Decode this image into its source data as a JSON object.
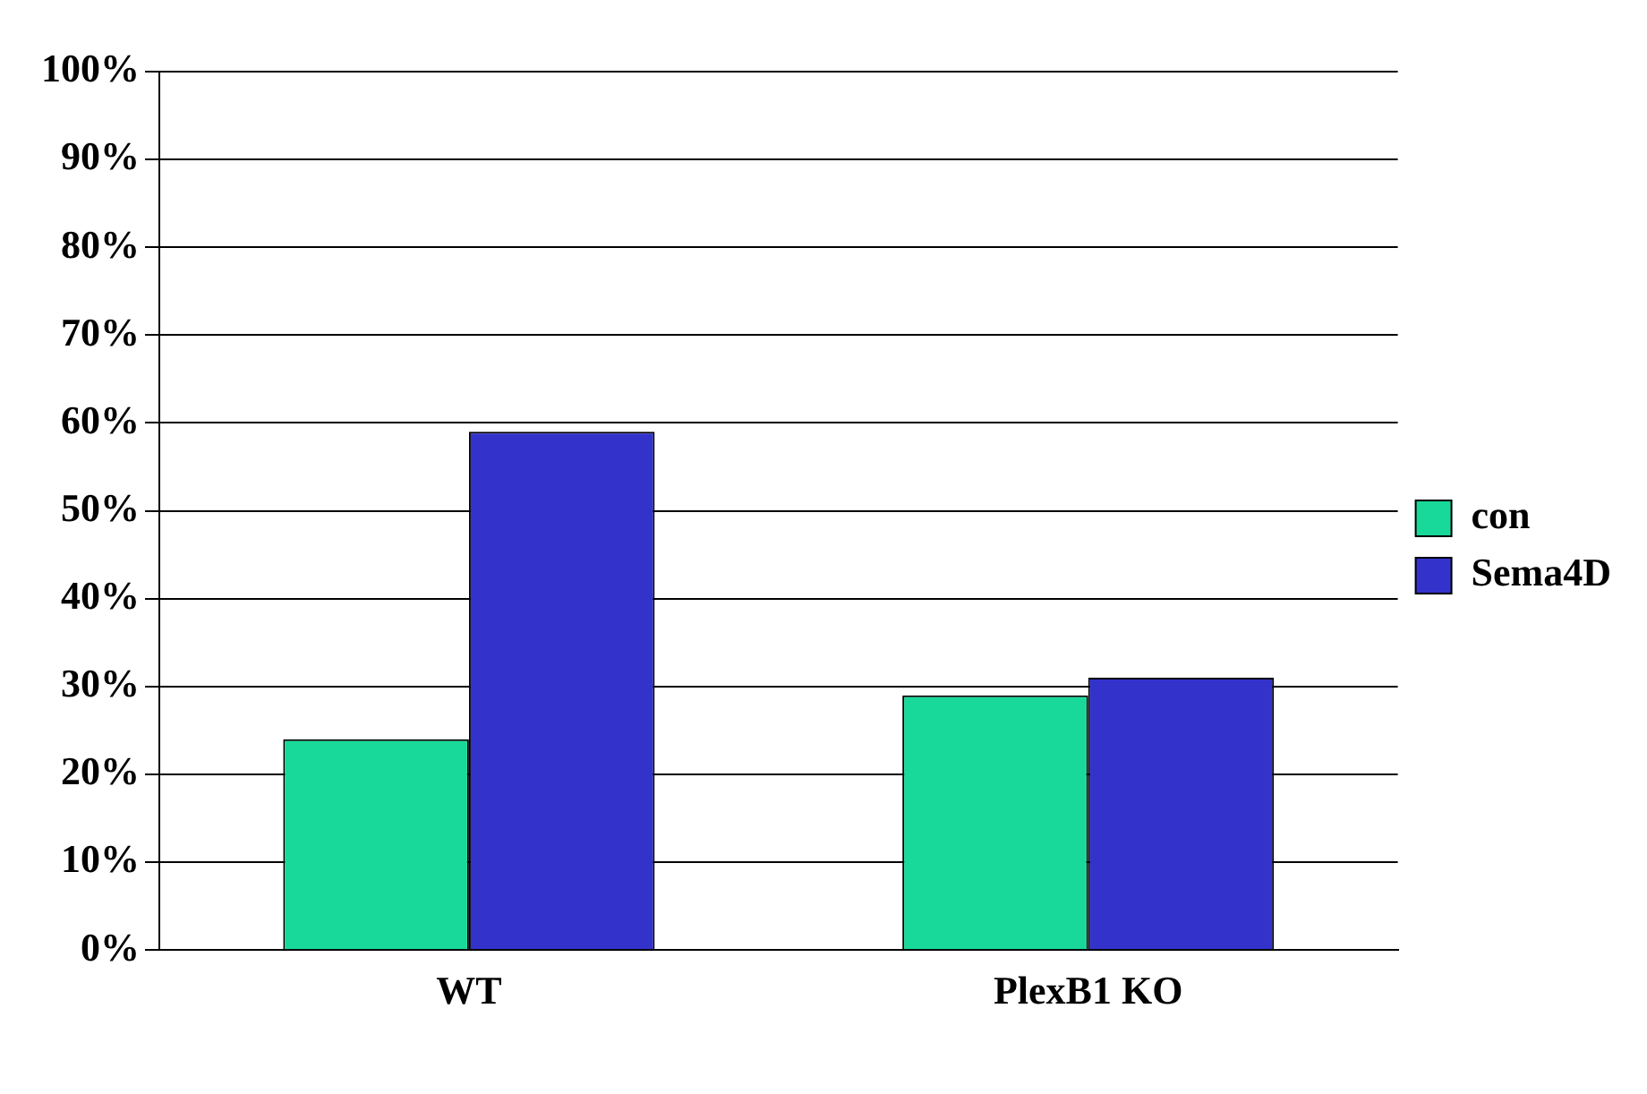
{
  "chart_data": {
    "type": "bar",
    "categories": [
      "WT",
      "PlexB1 KO"
    ],
    "series": [
      {
        "name": "con",
        "color": "#19d99a",
        "values": [
          24,
          29
        ]
      },
      {
        "name": "Sema4D",
        "color": "#3333cc",
        "values": [
          59,
          31
        ]
      }
    ],
    "ylim": [
      0,
      100
    ],
    "yticks": [
      {
        "value": 0,
        "label": "0%"
      },
      {
        "value": 10,
        "label": "10%"
      },
      {
        "value": 20,
        "label": "20%"
      },
      {
        "value": 30,
        "label": "30%"
      },
      {
        "value": 40,
        "label": "40%"
      },
      {
        "value": 50,
        "label": "50%"
      },
      {
        "value": 60,
        "label": "60%"
      },
      {
        "value": 70,
        "label": "70%"
      },
      {
        "value": 80,
        "label": "80%"
      },
      {
        "value": 90,
        "label": "90%"
      },
      {
        "value": 100,
        "label": "100%"
      }
    ],
    "grid": "y",
    "legend": "right"
  }
}
